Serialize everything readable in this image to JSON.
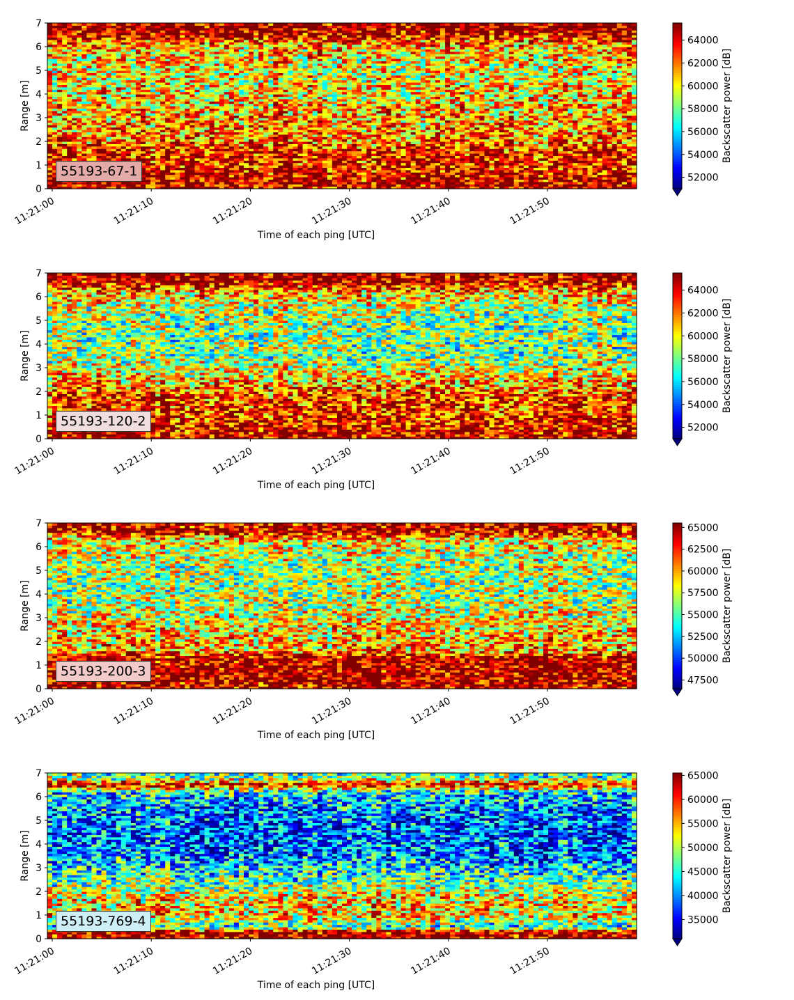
{
  "figure": {
    "xlabel": "Time of each ping [UTC]",
    "ylabel": "Range [m]",
    "colorbar_label": "Backscatter power [dB]"
  },
  "chart_data": [
    {
      "type": "heatmap",
      "panel_label": "55193-67-1",
      "xlabel": "Time of each ping [UTC]",
      "ylabel": "Range [m]",
      "x_ticks": [
        "11:21:00",
        "11:21:10",
        "11:21:20",
        "11:21:30",
        "11:21:40",
        "11:21:50"
      ],
      "x_range_seconds": [
        0,
        59
      ],
      "y_ticks": [
        0,
        1,
        2,
        3,
        4,
        5,
        6,
        7
      ],
      "ylim": [
        0,
        7
      ],
      "colormap": "jet",
      "colorbar_label": "Backscatter power [dB]",
      "colorbar_ticks": [
        52000,
        54000,
        56000,
        58000,
        60000,
        62000,
        64000
      ],
      "colorbar_range": [
        51000,
        65500
      ],
      "colorbar_extend": "min",
      "profile_by_range": [
        {
          "range": 0.1,
          "level": 0.95
        },
        {
          "range": 0.5,
          "level": 0.92
        },
        {
          "range": 1.0,
          "level": 0.85
        },
        {
          "range": 1.5,
          "level": 0.9
        },
        {
          "range": 2.0,
          "level": 0.75
        },
        {
          "range": 3.0,
          "level": 0.72
        },
        {
          "range": 4.0,
          "level": 0.65
        },
        {
          "range": 5.0,
          "level": 0.62
        },
        {
          "range": 6.0,
          "level": 0.7
        },
        {
          "range": 6.6,
          "level": 0.98
        },
        {
          "range": 7.0,
          "level": 0.98
        }
      ],
      "label_box_color": "#e3aaa8"
    },
    {
      "type": "heatmap",
      "panel_label": "55193-120-2",
      "xlabel": "Time of each ping [UTC]",
      "ylabel": "Range [m]",
      "x_ticks": [
        "11:21:00",
        "11:21:10",
        "11:21:20",
        "11:21:30",
        "11:21:40",
        "11:21:50"
      ],
      "x_range_seconds": [
        0,
        59
      ],
      "y_ticks": [
        0,
        1,
        2,
        3,
        4,
        5,
        6,
        7
      ],
      "ylim": [
        0,
        7
      ],
      "colormap": "jet",
      "colorbar_label": "Backscatter power [dB]",
      "colorbar_ticks": [
        52000,
        54000,
        56000,
        58000,
        60000,
        62000,
        64000
      ],
      "colorbar_range": [
        51000,
        65500
      ],
      "colorbar_extend": "min",
      "profile_by_range": [
        {
          "range": 0.1,
          "level": 0.95
        },
        {
          "range": 0.5,
          "level": 0.9
        },
        {
          "range": 1.0,
          "level": 0.85
        },
        {
          "range": 1.8,
          "level": 0.82
        },
        {
          "range": 2.5,
          "level": 0.68
        },
        {
          "range": 3.5,
          "level": 0.5
        },
        {
          "range": 4.5,
          "level": 0.5
        },
        {
          "range": 5.5,
          "level": 0.55
        },
        {
          "range": 6.2,
          "level": 0.7
        },
        {
          "range": 6.7,
          "level": 0.97
        },
        {
          "range": 7.0,
          "level": 0.97
        }
      ],
      "label_box_color": "#f0dede"
    },
    {
      "type": "heatmap",
      "panel_label": "55193-200-3",
      "xlabel": "Time of each ping [UTC]",
      "ylabel": "Range [m]",
      "x_ticks": [
        "11:21:00",
        "11:21:10",
        "11:21:20",
        "11:21:30",
        "11:21:40",
        "11:21:50"
      ],
      "x_range_seconds": [
        0,
        59
      ],
      "y_ticks": [
        0,
        1,
        2,
        3,
        4,
        5,
        6,
        7
      ],
      "ylim": [
        0,
        7
      ],
      "colormap": "jet",
      "colorbar_label": "Backscatter power [dB]",
      "colorbar_ticks": [
        47500,
        50000,
        52500,
        55000,
        57500,
        60000,
        62500,
        65000
      ],
      "colorbar_range": [
        46500,
        65500
      ],
      "colorbar_extend": "min",
      "profile_by_range": [
        {
          "range": 0.1,
          "level": 0.95
        },
        {
          "range": 0.7,
          "level": 0.97
        },
        {
          "range": 1.3,
          "level": 0.96
        },
        {
          "range": 1.6,
          "level": 0.7
        },
        {
          "range": 2.5,
          "level": 0.66
        },
        {
          "range": 3.5,
          "level": 0.55
        },
        {
          "range": 4.5,
          "level": 0.52
        },
        {
          "range": 5.5,
          "level": 0.55
        },
        {
          "range": 6.3,
          "level": 0.65
        },
        {
          "range": 6.7,
          "level": 0.96
        },
        {
          "range": 7.0,
          "level": 0.92
        }
      ],
      "label_box_color": "#f2caca"
    },
    {
      "type": "heatmap",
      "panel_label": "55193-769-4",
      "xlabel": "Time of each ping [UTC]",
      "ylabel": "Range [m]",
      "x_ticks": [
        "11:21:00",
        "11:21:10",
        "11:21:20",
        "11:21:30",
        "11:21:40",
        "11:21:50"
      ],
      "x_range_seconds": [
        0,
        59
      ],
      "y_ticks": [
        0,
        1,
        2,
        3,
        4,
        5,
        6,
        7
      ],
      "ylim": [
        0,
        7
      ],
      "colormap": "jet",
      "colorbar_label": "Backscatter power [dB]",
      "colorbar_ticks": [
        35000,
        40000,
        45000,
        50000,
        55000,
        60000,
        65000
      ],
      "colorbar_range": [
        31000,
        65500
      ],
      "colorbar_extend": "min",
      "profile_by_range": [
        {
          "range": 0.1,
          "level": 0.97
        },
        {
          "range": 0.3,
          "level": 0.97
        },
        {
          "range": 0.5,
          "level": 0.4
        },
        {
          "range": 1.0,
          "level": 0.68
        },
        {
          "range": 1.8,
          "level": 0.62
        },
        {
          "range": 2.5,
          "level": 0.45
        },
        {
          "range": 3.5,
          "level": 0.25
        },
        {
          "range": 4.5,
          "level": 0.2
        },
        {
          "range": 5.5,
          "level": 0.25
        },
        {
          "range": 6.2,
          "level": 0.35
        },
        {
          "range": 6.5,
          "level": 0.9
        },
        {
          "range": 6.8,
          "level": 0.5
        },
        {
          "range": 7.0,
          "level": 0.45
        }
      ],
      "label_box_color": "#cdeff5"
    }
  ]
}
